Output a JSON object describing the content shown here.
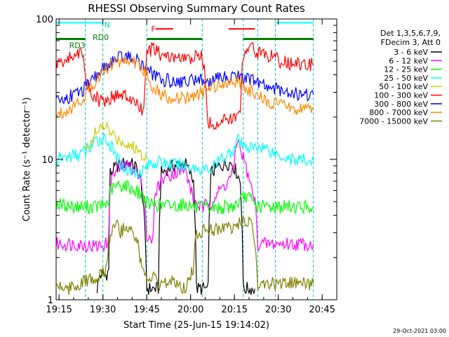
{
  "chart_data": {
    "type": "line",
    "title": "RHESSI Observing Summary Count Rates",
    "xlabel": "Start Time (25-Jun-15 19:14:02)",
    "ylabel": "Count Rate (s⁻¹ detector⁻¹)",
    "yscale": "log",
    "ylim": [
      1,
      100
    ],
    "xlim_minutes": [
      0,
      96
    ],
    "x_ticks": [
      {
        "label": "19:15",
        "minute": 1
      },
      {
        "label": "19:30",
        "minute": 16
      },
      {
        "label": "19:45",
        "minute": 31
      },
      {
        "label": "20:00",
        "minute": 46
      },
      {
        "label": "20:15",
        "minute": 61
      },
      {
        "label": "20:30",
        "minute": 76
      },
      {
        "label": "20:45",
        "minute": 91
      }
    ],
    "y_ticks": [
      {
        "label": "100",
        "value": 100
      },
      {
        "label": "10",
        "value": 10
      },
      {
        "label": "1",
        "value": 1
      }
    ],
    "legend_header": [
      "Det 1,3,5,6,7,9,",
      "FDecim 3, Att 0"
    ],
    "series": [
      {
        "name": "3 - 6 keV",
        "color": "#000000",
        "points": [
          [
            14,
            1.2
          ],
          [
            15,
            1.5
          ],
          [
            17,
            1.5
          ],
          [
            18,
            1.6
          ],
          [
            18.5,
            8
          ],
          [
            21,
            9
          ],
          [
            24,
            9.5
          ],
          [
            27,
            9
          ],
          [
            29,
            7
          ],
          [
            31,
            1.2
          ],
          [
            35,
            1.2
          ],
          [
            36,
            8
          ],
          [
            40,
            9
          ],
          [
            44,
            9.5
          ],
          [
            47,
            7
          ],
          [
            48,
            1.2
          ],
          [
            52,
            1.2
          ],
          [
            53,
            8
          ],
          [
            56,
            9
          ],
          [
            60,
            9.5
          ],
          [
            63,
            7
          ],
          [
            64,
            1.2
          ],
          [
            68,
            1.2
          ]
        ]
      },
      {
        "name": "6 - 12 keV",
        "color": "#ff00ff",
        "points": [
          [
            0,
            2.5
          ],
          [
            7,
            2.5
          ],
          [
            14,
            2.4
          ],
          [
            17,
            2.5
          ],
          [
            18,
            2.6
          ],
          [
            18.5,
            7
          ],
          [
            21,
            8.5
          ],
          [
            24,
            9
          ],
          [
            27,
            8.5
          ],
          [
            30,
            6
          ],
          [
            31,
            2.8
          ],
          [
            33,
            2.5
          ],
          [
            34,
            6
          ],
          [
            37,
            7.5
          ],
          [
            40,
            8
          ],
          [
            44,
            8.5
          ],
          [
            47,
            5
          ],
          [
            50,
            4.5
          ],
          [
            53,
            5
          ],
          [
            56,
            6
          ],
          [
            59,
            7
          ],
          [
            61,
            9
          ],
          [
            62,
            14
          ],
          [
            63,
            12
          ],
          [
            66,
            7
          ],
          [
            68,
            5
          ],
          [
            69,
            2.5
          ],
          [
            76,
            2.5
          ],
          [
            85,
            2.5
          ],
          [
            88,
            2.5
          ]
        ]
      },
      {
        "name": "12 - 25 keV",
        "color": "#00ff00",
        "points": [
          [
            0,
            4.8
          ],
          [
            7,
            4.6
          ],
          [
            14,
            4.6
          ],
          [
            17,
            4.8
          ],
          [
            18,
            5
          ],
          [
            18.5,
            6
          ],
          [
            21,
            6.5
          ],
          [
            24,
            6.5
          ],
          [
            27,
            6
          ],
          [
            30,
            5.5
          ],
          [
            31,
            4.8
          ],
          [
            34,
            4.8
          ],
          [
            36,
            4.7
          ],
          [
            40,
            4.7
          ],
          [
            44,
            4.8
          ],
          [
            47,
            4.6
          ],
          [
            48,
            4.5
          ],
          [
            52,
            4.5
          ],
          [
            55,
            4.5
          ],
          [
            60,
            4.6
          ],
          [
            63,
            5
          ],
          [
            65,
            5.5
          ],
          [
            68,
            4.8
          ],
          [
            69,
            4.6
          ],
          [
            76,
            4.6
          ],
          [
            85,
            4.6
          ],
          [
            88,
            4.6
          ]
        ]
      },
      {
        "name": "25 - 50 keV",
        "color": "#00ffff",
        "points": [
          [
            0,
            9.8
          ],
          [
            2,
            10.2
          ],
          [
            5,
            10.5
          ],
          [
            8,
            10.8
          ],
          [
            10,
            11.5
          ],
          [
            11,
            12
          ],
          [
            12,
            12.5
          ],
          [
            13,
            13
          ],
          [
            14,
            13.5
          ],
          [
            15,
            14
          ],
          [
            17,
            14.2
          ],
          [
            18,
            13
          ],
          [
            19,
            12
          ],
          [
            21,
            10
          ],
          [
            24,
            8.5
          ],
          [
            27,
            8
          ],
          [
            30,
            8.5
          ],
          [
            31,
            9
          ],
          [
            33,
            9.5
          ],
          [
            36,
            9.5
          ],
          [
            40,
            9.2
          ],
          [
            44,
            9
          ],
          [
            47,
            8.8
          ],
          [
            50,
            8.5
          ],
          [
            53,
            8.5
          ],
          [
            56,
            9.8
          ],
          [
            59,
            11
          ],
          [
            61,
            12
          ],
          [
            62,
            14
          ],
          [
            63,
            13
          ],
          [
            64,
            12
          ],
          [
            65,
            13
          ],
          [
            66,
            12
          ],
          [
            68,
            12
          ],
          [
            70,
            12.5
          ],
          [
            72,
            12
          ],
          [
            75,
            11
          ],
          [
            78,
            10.5
          ],
          [
            81,
            10
          ],
          [
            85,
            9.8
          ],
          [
            88,
            9.8
          ]
        ]
      },
      {
        "name": "50 - 100 keV",
        "color": "#cccc00",
        "points": [
          [
            10,
            11.5
          ],
          [
            11,
            12.5
          ],
          [
            12,
            14
          ],
          [
            13,
            15
          ],
          [
            14,
            15.5
          ],
          [
            15,
            16
          ],
          [
            16,
            17
          ],
          [
            17,
            17.5
          ],
          [
            18,
            16
          ],
          [
            19,
            15
          ],
          [
            21,
            14
          ],
          [
            24,
            13
          ],
          [
            27,
            12
          ],
          [
            29,
            11
          ],
          [
            30,
            10.8
          ],
          [
            31,
            10.5
          ]
        ]
      },
      {
        "name": "100 - 300 keV",
        "color": "#ff0000",
        "points": [
          [
            0,
            48
          ],
          [
            3,
            50
          ],
          [
            6,
            55
          ],
          [
            8,
            58
          ],
          [
            9,
            60
          ],
          [
            10,
            36
          ],
          [
            12,
            30
          ],
          [
            15,
            26
          ],
          [
            18,
            27
          ],
          [
            21,
            29
          ],
          [
            24,
            28
          ],
          [
            27,
            25
          ],
          [
            29,
            23
          ],
          [
            30,
            22
          ],
          [
            31,
            55
          ],
          [
            33,
            62
          ],
          [
            36,
            55
          ],
          [
            40,
            53
          ],
          [
            44,
            52
          ],
          [
            47,
            52
          ],
          [
            48,
            54
          ],
          [
            50,
            55
          ],
          [
            52,
            18
          ],
          [
            55,
            18
          ],
          [
            58,
            19
          ],
          [
            61,
            20
          ],
          [
            63,
            20
          ],
          [
            64,
            57
          ],
          [
            66,
            65
          ],
          [
            69,
            58
          ],
          [
            72,
            56
          ],
          [
            75,
            52
          ],
          [
            78,
            49
          ],
          [
            81,
            48
          ],
          [
            84,
            47
          ],
          [
            88,
            47
          ]
        ]
      },
      {
        "name": "300 - 800 keV",
        "color": "#0000ff",
        "points": [
          [
            0,
            26
          ],
          [
            3,
            27
          ],
          [
            6,
            29
          ],
          [
            9,
            31
          ],
          [
            12,
            35
          ],
          [
            15,
            42
          ],
          [
            18,
            48
          ],
          [
            21,
            52
          ],
          [
            24,
            54
          ],
          [
            27,
            52
          ],
          [
            30,
            46
          ],
          [
            31,
            44
          ],
          [
            33,
            40
          ],
          [
            36,
            37
          ],
          [
            40,
            36
          ],
          [
            44,
            36
          ],
          [
            47,
            37
          ],
          [
            48,
            38
          ],
          [
            50,
            37
          ],
          [
            52,
            35
          ],
          [
            55,
            37
          ],
          [
            58,
            39
          ],
          [
            61,
            40
          ],
          [
            64,
            38
          ],
          [
            66,
            37
          ],
          [
            69,
            35
          ],
          [
            72,
            33
          ],
          [
            75,
            32
          ],
          [
            78,
            31
          ],
          [
            81,
            30
          ],
          [
            84,
            29
          ],
          [
            88,
            29
          ]
        ]
      },
      {
        "name": "800 - 7000 keV",
        "color": "#ff8800",
        "points": [
          [
            0,
            21
          ],
          [
            3,
            22
          ],
          [
            6,
            24
          ],
          [
            9,
            27
          ],
          [
            12,
            33
          ],
          [
            15,
            40
          ],
          [
            18,
            46
          ],
          [
            21,
            50
          ],
          [
            24,
            51
          ],
          [
            27,
            49
          ],
          [
            30,
            43
          ],
          [
            31,
            40
          ],
          [
            33,
            33
          ],
          [
            36,
            29
          ],
          [
            40,
            27
          ],
          [
            44,
            27
          ],
          [
            47,
            28
          ],
          [
            48,
            29
          ],
          [
            50,
            30
          ],
          [
            52,
            32
          ],
          [
            55,
            34
          ],
          [
            58,
            36
          ],
          [
            61,
            36
          ],
          [
            64,
            34
          ],
          [
            66,
            31
          ],
          [
            69,
            28
          ],
          [
            72,
            26
          ],
          [
            75,
            25
          ],
          [
            78,
            24
          ],
          [
            81,
            23
          ],
          [
            84,
            23
          ],
          [
            88,
            23
          ]
        ]
      },
      {
        "name": "7000 - 15000 keV",
        "color": "#808000",
        "points": [
          [
            0,
            1.3
          ],
          [
            4,
            1.2
          ],
          [
            8,
            1.3
          ],
          [
            12,
            1.4
          ],
          [
            14,
            1.3
          ],
          [
            15,
            1.5
          ],
          [
            17,
            1.6
          ],
          [
            18,
            2.5
          ],
          [
            20,
            3.5
          ],
          [
            21,
            4
          ],
          [
            22,
            3
          ],
          [
            24,
            3.5
          ],
          [
            26,
            3
          ],
          [
            27,
            2.8
          ],
          [
            28,
            2.5
          ],
          [
            29,
            1.8
          ],
          [
            31,
            1.3
          ],
          [
            33,
            1.5
          ],
          [
            35,
            1.2
          ],
          [
            40,
            1.4
          ],
          [
            44,
            1.2
          ],
          [
            46,
            1.5
          ],
          [
            47,
            1.7
          ],
          [
            48,
            3
          ],
          [
            52,
            3.2
          ],
          [
            56,
            3.2
          ],
          [
            60,
            3.3
          ],
          [
            63,
            3.5
          ],
          [
            65,
            3.6
          ],
          [
            67,
            3.4
          ],
          [
            68,
            2.5
          ],
          [
            69,
            1.3
          ],
          [
            76,
            1.3
          ],
          [
            88,
            1.3
          ]
        ]
      }
    ],
    "attenuator_bar": {
      "segments": [
        [
          0,
          10
        ],
        [
          31,
          50
        ],
        [
          64,
          88
        ]
      ],
      "color": "#008000"
    },
    "dashed_markers": {
      "minutes": [
        10,
        16,
        31,
        50,
        64,
        69,
        75,
        88
      ]
    },
    "annotations": [
      {
        "text": "N",
        "color": "#00c8c8",
        "minute": 16,
        "value": 91
      },
      {
        "text": "F",
        "color": "#ff0000",
        "minute": 32,
        "value": 85
      },
      {
        "text": "RD0",
        "color": "#008000",
        "minute": 12,
        "value": 74
      },
      {
        "text": "RD3",
        "color": "#008000",
        "minute": 4,
        "value": 65
      }
    ],
    "night_bars": [
      [
        0,
        16
      ],
      [
        75,
        88
      ]
    ],
    "flare_bars": [
      [
        34,
        40
      ],
      [
        59,
        68
      ]
    ],
    "timestamp": "29-Oct-2021 03:00"
  }
}
